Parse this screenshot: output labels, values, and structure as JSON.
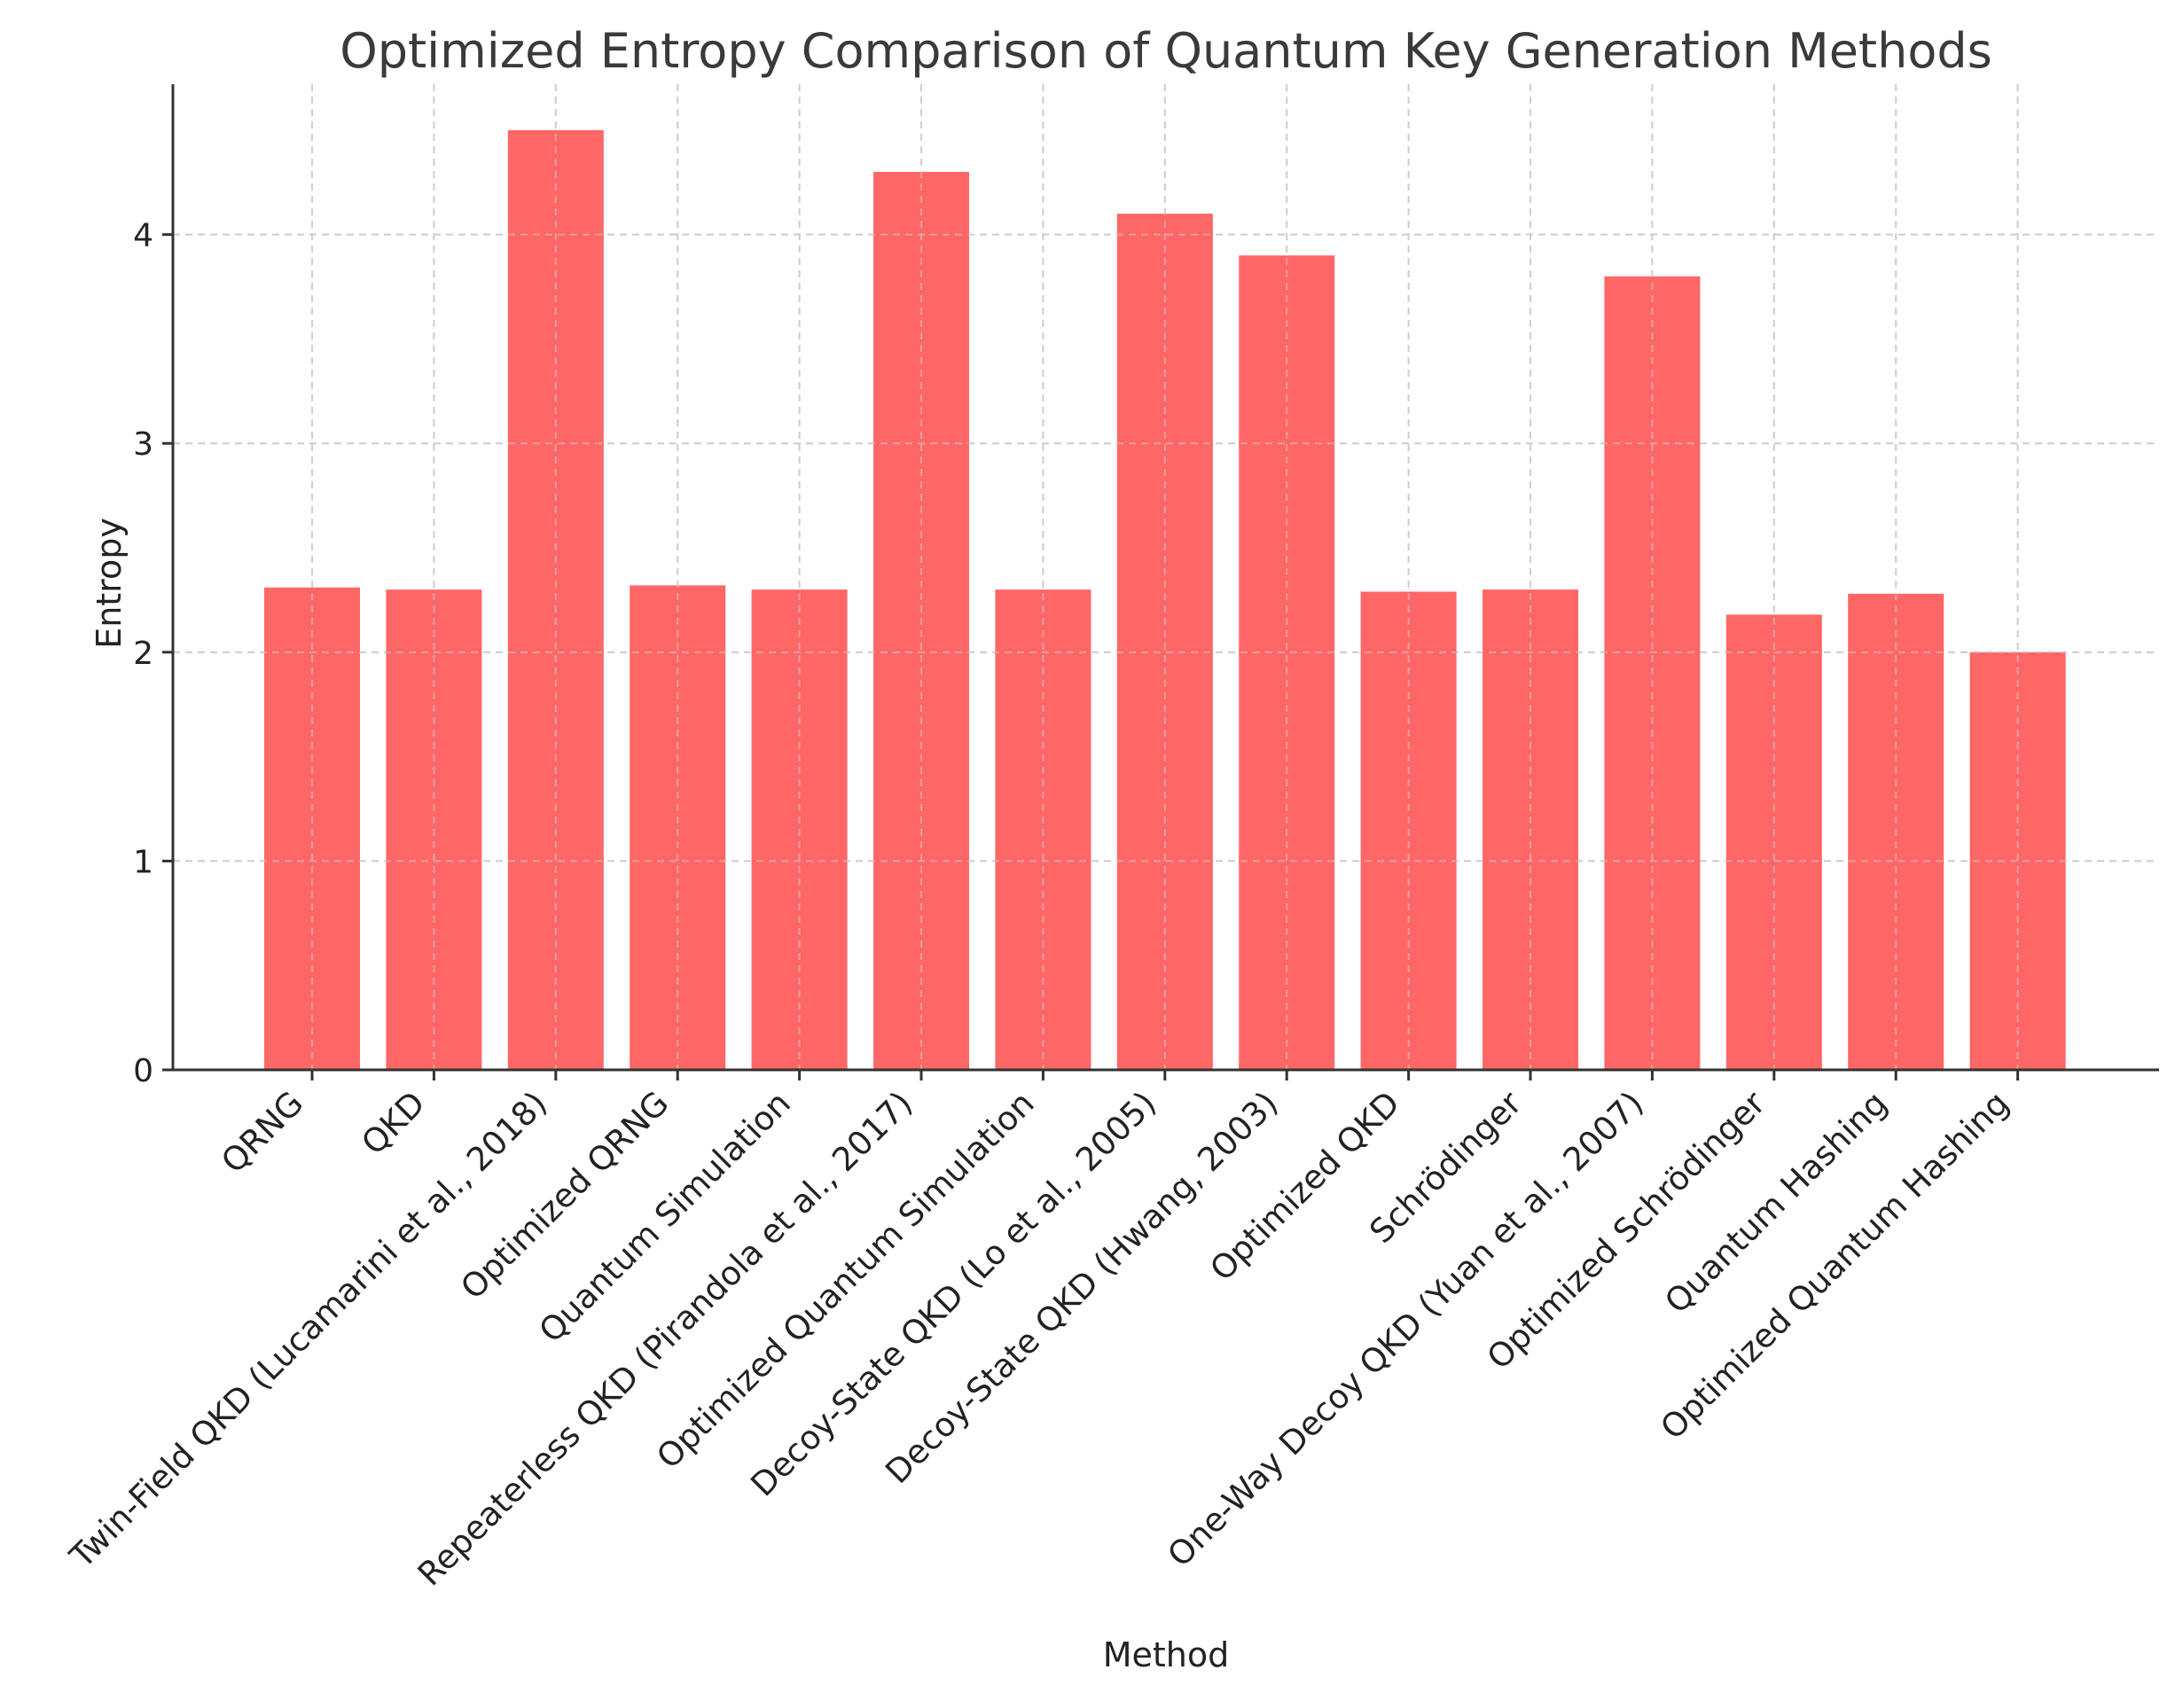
{
  "chart_data": {
    "type": "bar",
    "title": "Optimized Entropy Comparison of Quantum Key Generation Methods",
    "xlabel": "Method",
    "ylabel": "Entropy",
    "ylim": [
      0,
      4.72
    ],
    "yticks": [
      0,
      1,
      2,
      3,
      4
    ],
    "grid": true,
    "bar_color": "#ff6666",
    "categories": [
      "QRNG",
      "QKD",
      "Twin-Field QKD (Lucamarini et al., 2018)",
      "Optimized QRNG",
      "Quantum Simulation",
      "Repeaterless QKD (Pirandola et al., 2017)",
      "Optimized Quantum Simulation",
      "Decoy-State QKD (Lo et al., 2005)",
      "Decoy-State QKD (Hwang, 2003)",
      "Optimized QKD",
      "Schrödinger",
      "One-Way Decoy QKD (Yuan et al., 2007)",
      "Optimized Schrödinger",
      "Quantum Hashing",
      "Optimized Quantum Hashing"
    ],
    "values": [
      2.31,
      2.3,
      4.5,
      2.32,
      2.3,
      4.3,
      2.3,
      4.1,
      3.9,
      2.29,
      2.3,
      3.8,
      2.18,
      2.28,
      2.0
    ]
  }
}
